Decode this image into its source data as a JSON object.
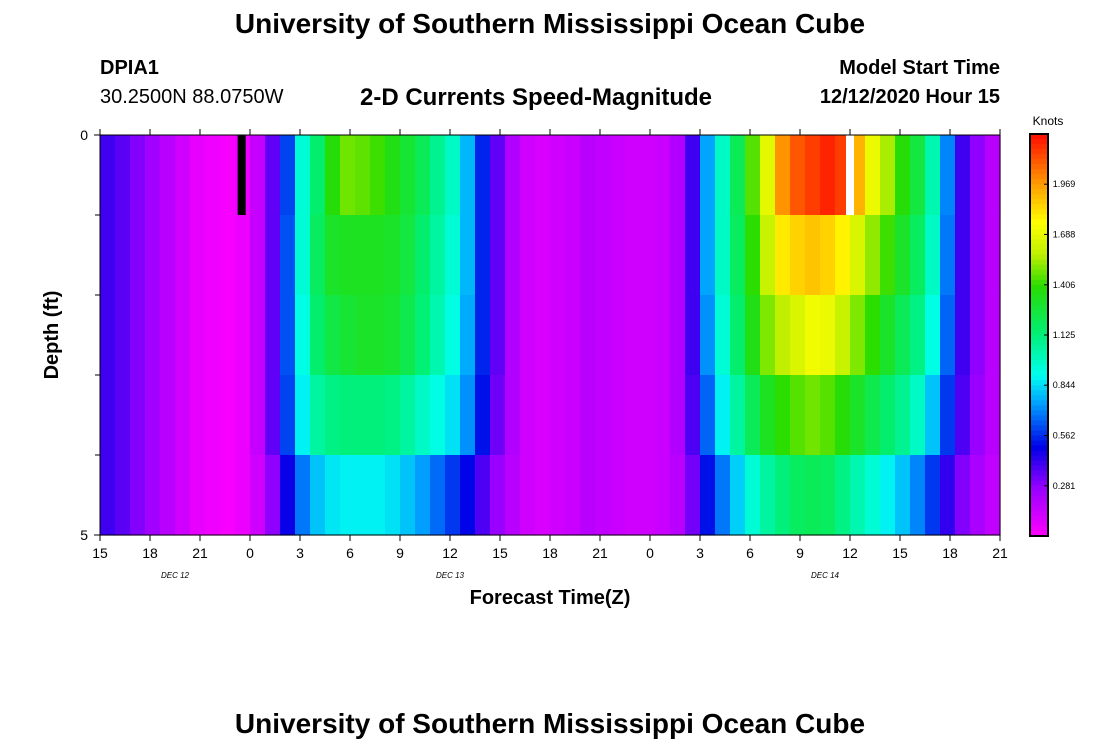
{
  "header": {
    "title_top": "University of Southern Mississippi Ocean Cube",
    "title_bottom": "University of Southern Mississippi Ocean Cube",
    "station_id": "DPIA1",
    "station_coords": "30.2500N 88.0750W",
    "model_start_label": "Model Start Time",
    "model_start_value": "12/12/2020 Hour 15"
  },
  "colorbar": {
    "unit": "Knots",
    "ticks": [
      "0.281",
      "0.562",
      "0.844",
      "1.125",
      "1.406",
      "1.688",
      "1.969"
    ],
    "tick_values": [
      0.281,
      0.562,
      0.844,
      1.125,
      1.406,
      1.688,
      1.969
    ],
    "min": 0,
    "max": 2.25
  },
  "chart_data": {
    "type": "heatmap",
    "title": "2-D Currents Speed-Magnitude",
    "xlabel": "Forecast Time(Z)",
    "ylabel": "Depth (ft)",
    "x_tick_labels": [
      "15",
      "18",
      "21",
      "0",
      "3",
      "6",
      "9",
      "12",
      "15",
      "18",
      "21",
      "0",
      "3",
      "6",
      "9",
      "12",
      "15",
      "18",
      "21"
    ],
    "day_labels": [
      {
        "text": "DEC 12",
        "hour": 4.5
      },
      {
        "text": "DEC 13",
        "hour": 21
      },
      {
        "text": "DEC 14",
        "hour": 43.5
      }
    ],
    "x_unit": "forecast hour",
    "xlim": [
      0,
      54
    ],
    "y_tick_labels": [
      "0",
      "5"
    ],
    "y_minor_ticks": [
      1,
      2,
      3,
      4
    ],
    "ylim": [
      0,
      5
    ],
    "depth_bins": [
      0.5,
      1.5,
      2.5,
      3.5,
      4.5
    ],
    "missing_value_hours": [
      {
        "hour": 8.5,
        "depth": 0.5,
        "color": "#000000"
      },
      {
        "hour": 45,
        "depth": 0.5,
        "color": "#ffffff"
      }
    ],
    "series": [
      {
        "name": "0-1 ft",
        "values": [
          0.4,
          0.36,
          0.3,
          0.24,
          0.18,
          0.12,
          0.06,
          0.04,
          0.02,
          0.05,
          0.15,
          0.35,
          0.6,
          0.95,
          1.15,
          1.38,
          1.48,
          1.46,
          1.42,
          1.35,
          1.28,
          1.2,
          1.08,
          0.98,
          0.78,
          0.55,
          0.35,
          0.2,
          0.12,
          0.1,
          0.12,
          0.14,
          0.18,
          0.16,
          0.14,
          0.12,
          0.12,
          0.14,
          0.2,
          0.4,
          0.75,
          0.98,
          1.2,
          1.45,
          1.68,
          1.98,
          2.1,
          2.15,
          2.2,
          2.15,
          1.92,
          1.7,
          1.55,
          1.38,
          1.25,
          1.02,
          0.7,
          0.4,
          0.28,
          0.18
        ]
      },
      {
        "name": "1-2 ft",
        "values": [
          0.4,
          0.36,
          0.3,
          0.24,
          0.18,
          0.12,
          0.06,
          0.04,
          0.02,
          0.05,
          0.15,
          0.35,
          0.62,
          0.95,
          1.18,
          1.3,
          1.32,
          1.32,
          1.32,
          1.3,
          1.25,
          1.15,
          1.05,
          0.95,
          0.78,
          0.55,
          0.35,
          0.2,
          0.12,
          0.1,
          0.12,
          0.14,
          0.18,
          0.16,
          0.14,
          0.12,
          0.12,
          0.14,
          0.2,
          0.4,
          0.75,
          0.98,
          1.18,
          1.4,
          1.6,
          1.8,
          1.85,
          1.88,
          1.85,
          1.78,
          1.65,
          1.52,
          1.42,
          1.3,
          1.18,
          0.98,
          0.68,
          0.4,
          0.28,
          0.18
        ]
      },
      {
        "name": "2-3 ft",
        "values": [
          0.4,
          0.36,
          0.3,
          0.24,
          0.18,
          0.12,
          0.06,
          0.04,
          0.02,
          0.05,
          0.15,
          0.35,
          0.62,
          0.92,
          1.15,
          1.24,
          1.28,
          1.3,
          1.3,
          1.28,
          1.22,
          1.13,
          1.02,
          0.92,
          0.76,
          0.55,
          0.35,
          0.2,
          0.12,
          0.1,
          0.12,
          0.14,
          0.18,
          0.16,
          0.14,
          0.12,
          0.12,
          0.14,
          0.2,
          0.4,
          0.72,
          0.95,
          1.15,
          1.35,
          1.5,
          1.58,
          1.65,
          1.72,
          1.7,
          1.6,
          1.5,
          1.4,
          1.3,
          1.2,
          1.1,
          0.92,
          0.65,
          0.4,
          0.28,
          0.18
        ]
      },
      {
        "name": "3-4 ft",
        "values": [
          0.4,
          0.36,
          0.3,
          0.24,
          0.18,
          0.12,
          0.06,
          0.04,
          0.02,
          0.05,
          0.15,
          0.35,
          0.6,
          0.88,
          1.05,
          1.1,
          1.12,
          1.12,
          1.12,
          1.1,
          1.05,
          0.98,
          0.92,
          0.85,
          0.72,
          0.52,
          0.33,
          0.2,
          0.12,
          0.1,
          0.12,
          0.14,
          0.18,
          0.16,
          0.14,
          0.12,
          0.12,
          0.14,
          0.2,
          0.38,
          0.65,
          0.88,
          1.05,
          1.2,
          1.32,
          1.4,
          1.45,
          1.48,
          1.45,
          1.38,
          1.3,
          1.22,
          1.15,
          1.08,
          0.98,
          0.8,
          0.58,
          0.38,
          0.26,
          0.18
        ]
      },
      {
        "name": "4-5 ft",
        "values": [
          0.4,
          0.36,
          0.3,
          0.24,
          0.18,
          0.12,
          0.06,
          0.04,
          0.02,
          0.05,
          0.12,
          0.28,
          0.48,
          0.68,
          0.8,
          0.86,
          0.88,
          0.88,
          0.88,
          0.85,
          0.8,
          0.74,
          0.66,
          0.58,
          0.5,
          0.38,
          0.26,
          0.18,
          0.12,
          0.1,
          0.12,
          0.14,
          0.18,
          0.16,
          0.14,
          0.12,
          0.12,
          0.14,
          0.18,
          0.32,
          0.52,
          0.68,
          0.82,
          0.95,
          1.05,
          1.12,
          1.18,
          1.2,
          1.18,
          1.1,
          1.02,
          0.95,
          0.88,
          0.8,
          0.7,
          0.58,
          0.42,
          0.3,
          0.22,
          0.16
        ]
      }
    ]
  }
}
